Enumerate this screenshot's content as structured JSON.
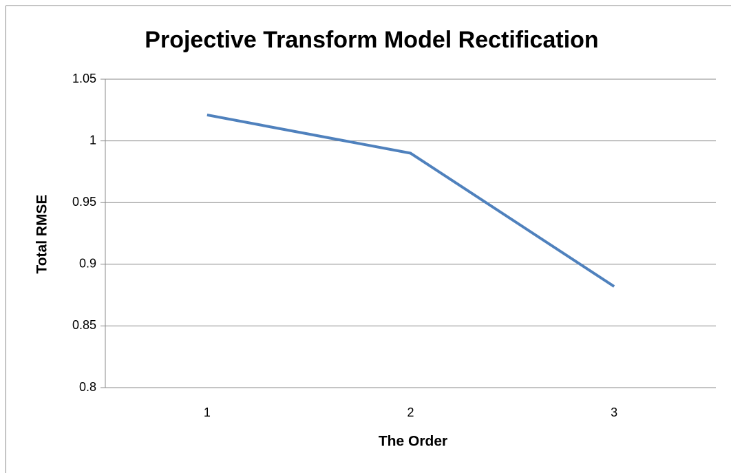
{
  "chart_data": {
    "type": "line",
    "title": "Projective Transform Model Rectification",
    "x_label": "The Order",
    "y_label": "Total RMSE",
    "categories": [
      "1",
      "2",
      "3"
    ],
    "series": [
      {
        "name": "Total RMSE",
        "color": "#4f81bd",
        "values": [
          1.021,
          0.99,
          0.882
        ]
      }
    ],
    "ylim": [
      0.8,
      1.05
    ],
    "yticks": [
      0.8,
      0.85,
      0.9,
      0.95,
      1,
      1.05
    ],
    "grid": true
  }
}
